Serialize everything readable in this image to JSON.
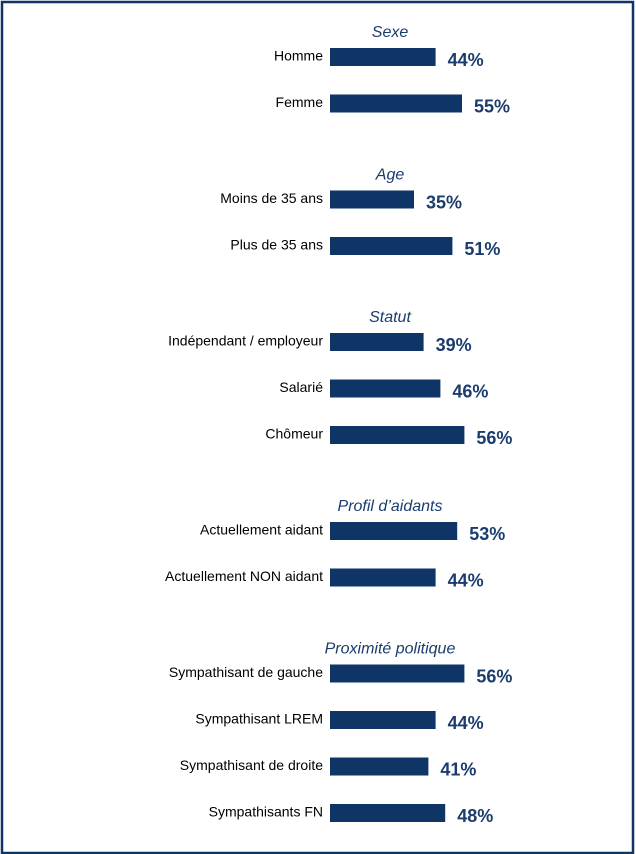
{
  "chart_data": {
    "type": "bar",
    "color": "#0f3567",
    "label_color": "#1b3c6e",
    "groups": [
      {
        "name": "Sexe",
        "categories": [
          "Homme",
          "Femme"
        ],
        "values": [
          44,
          55
        ],
        "value_labels": [
          "44%",
          "55%"
        ]
      },
      {
        "name": "Age",
        "categories": [
          "Moins de 35 ans",
          "Plus de 35 ans"
        ],
        "values": [
          35,
          51
        ],
        "value_labels": [
          "35%",
          "51%"
        ]
      },
      {
        "name": "Statut",
        "categories": [
          "Indépendant / employeur",
          "Salarié",
          "Chômeur"
        ],
        "values": [
          39,
          46,
          56
        ],
        "value_labels": [
          "39%",
          "46%",
          "56%"
        ]
      },
      {
        "name": "Profil d’aidants",
        "categories": [
          "Actuellement aidant",
          "Actuellement NON aidant"
        ],
        "values": [
          53,
          44
        ],
        "value_labels": [
          "53%",
          "44%"
        ]
      },
      {
        "name": "Proximité politique",
        "categories": [
          "Sympathisant de gauche",
          "Sympathisant LREM",
          "Sympathisant de droite",
          "Sympathisants FN"
        ],
        "values": [
          56,
          44,
          41,
          48
        ],
        "value_labels": [
          "56%",
          "44%",
          "41%",
          "48%"
        ]
      }
    ]
  }
}
